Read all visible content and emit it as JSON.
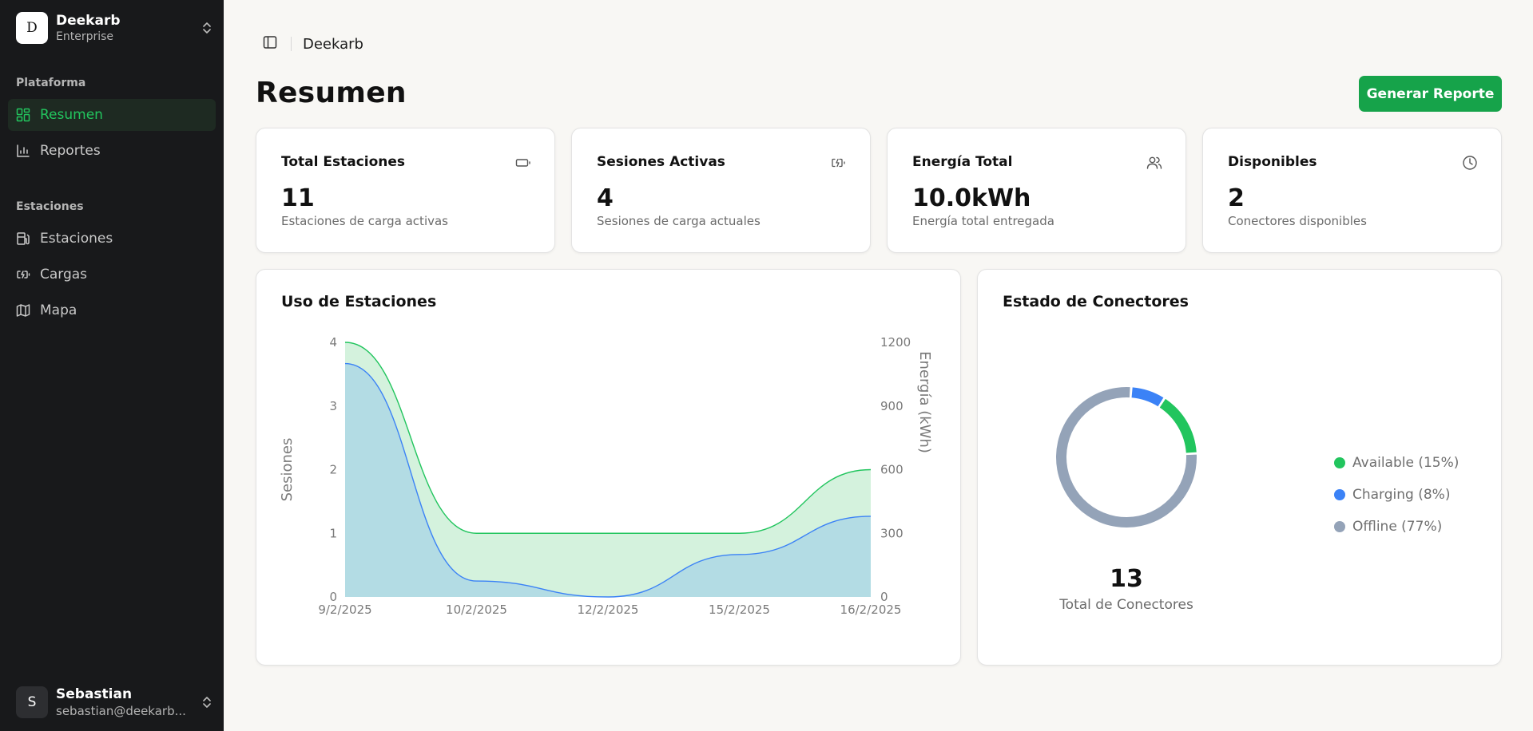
{
  "workspace": {
    "logo_letter": "D",
    "name": "Deekarb",
    "plan": "Enterprise"
  },
  "sidebar": {
    "groups": [
      {
        "label": "Plataforma",
        "items": [
          {
            "label": "Resumen",
            "icon": "dashboard-icon",
            "active": true
          },
          {
            "label": "Reportes",
            "icon": "bar-chart-icon"
          }
        ]
      },
      {
        "label": "Estaciones",
        "items": [
          {
            "label": "Estaciones",
            "icon": "fuel-station-icon"
          },
          {
            "label": "Cargas",
            "icon": "battery-charging-icon"
          },
          {
            "label": "Mapa",
            "icon": "map-icon"
          }
        ]
      }
    ]
  },
  "user": {
    "initial": "S",
    "name": "Sebastian",
    "email": "sebastian@deekarb..."
  },
  "header": {
    "breadcrumb": "Deekarb",
    "title": "Resumen",
    "primary_button": "Generar Reporte"
  },
  "stats": [
    {
      "title": "Total Estaciones",
      "value": "11",
      "subtitle": "Estaciones de carga activas",
      "icon": "battery-icon"
    },
    {
      "title": "Sesiones Activas",
      "value": "4",
      "subtitle": "Sesiones de carga actuales",
      "icon": "battery-charging-icon"
    },
    {
      "title": "Energía Total",
      "value": "10.0kWh",
      "subtitle": "Energía total entregada",
      "icon": "users-icon"
    },
    {
      "title": "Disponibles",
      "value": "2",
      "subtitle": "Conectores disponibles",
      "icon": "clock-icon"
    }
  ],
  "usage_card": {
    "title": "Uso de Estaciones"
  },
  "connectors_card": {
    "title": "Estado de Conectores",
    "total_value": "13",
    "total_label": "Total de Conectores"
  },
  "colors": {
    "accent": "#16a34a",
    "available": "#22c55e",
    "charging": "#3b82f6",
    "offline": "#94a3b8"
  },
  "chart_data": [
    {
      "type": "area",
      "x": [
        "9/2/2025",
        "10/2/2025",
        "12/2/2025",
        "15/2/2025",
        "16/2/2025"
      ],
      "ylabel": "Sesiones",
      "ylabel_right": "Energía (kWh)",
      "ylim": [
        0,
        4
      ],
      "ylim_right": [
        0,
        1200
      ],
      "yticks": [
        0,
        1,
        2,
        3,
        4
      ],
      "yticks_right": [
        0,
        300,
        600,
        900,
        1200
      ],
      "series": [
        {
          "values": [
            4,
            1,
            1,
            1,
            2
          ],
          "axis": "left",
          "color": "#22c55e"
        },
        {
          "values": [
            1100,
            75,
            0,
            200,
            380
          ],
          "axis": "right",
          "color": "#3b82f6"
        }
      ],
      "grid": false
    },
    {
      "type": "pie",
      "donut": true,
      "slices": [
        {
          "label": "Available (15%)",
          "value": 15,
          "color": "#22c55e"
        },
        {
          "label": "Charging (8%)",
          "value": 8,
          "color": "#3b82f6"
        },
        {
          "label": "Offline (77%)",
          "value": 77,
          "color": "#94a3b8"
        }
      ]
    }
  ]
}
